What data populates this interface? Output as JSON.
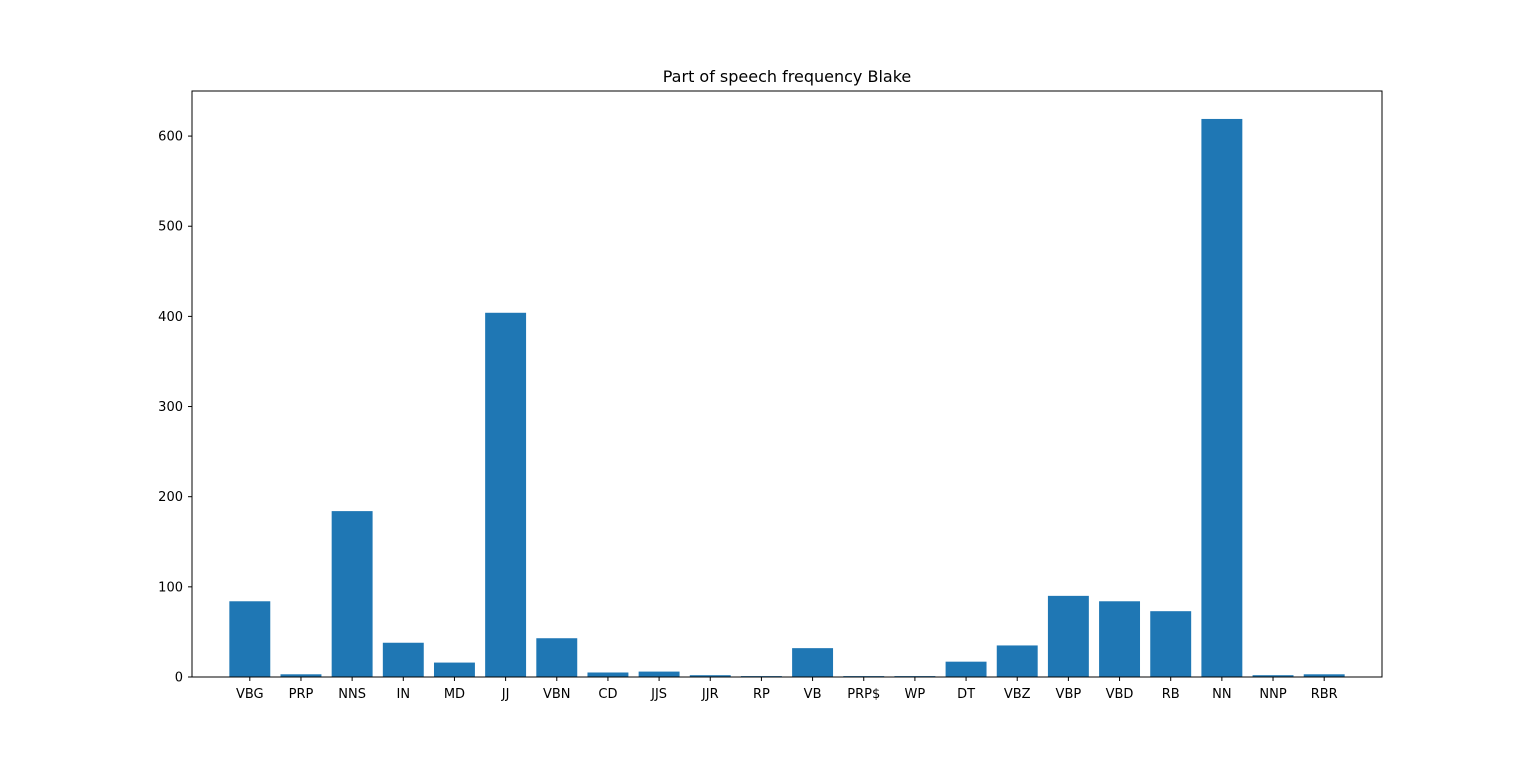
{
  "chart_data": {
    "type": "bar",
    "title": "Part of speech frequency Blake",
    "xlabel": "",
    "ylabel": "",
    "categories": [
      "VBG",
      "PRP",
      "NNS",
      "IN",
      "MD",
      "JJ",
      "VBN",
      "CD",
      "JJS",
      "JJR",
      "RP",
      "VB",
      "PRP$",
      "WP",
      "DT",
      "VBZ",
      "VBP",
      "VBD",
      "RB",
      "NN",
      "NNP",
      "RBR"
    ],
    "values": [
      84,
      3,
      184,
      38,
      16,
      404,
      43,
      5,
      6,
      2,
      1,
      32,
      1,
      1,
      17,
      35,
      90,
      84,
      73,
      619,
      2,
      3
    ],
    "ylim": [
      0,
      650
    ],
    "yticks": [
      0,
      100,
      200,
      300,
      400,
      500,
      600
    ],
    "grid": false,
    "legend": "none",
    "bar_color": "#1f77b4"
  }
}
